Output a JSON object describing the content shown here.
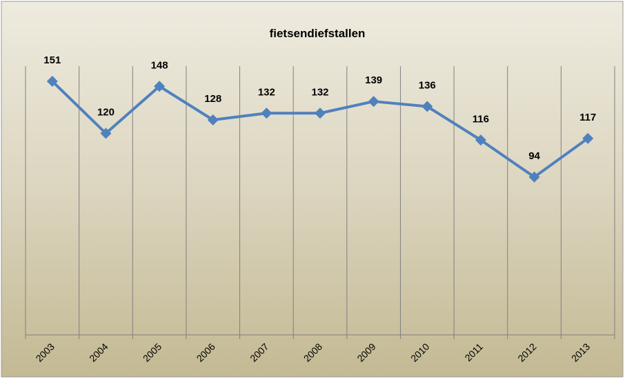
{
  "chart_data": {
    "type": "line",
    "title": "fietsendiefstallen",
    "categories": [
      "2003",
      "2004",
      "2005",
      "2006",
      "2007",
      "2008",
      "2009",
      "2010",
      "2011",
      "2012",
      "2013"
    ],
    "series": [
      {
        "name": "fietsendiefstallen",
        "color": "#4f81bd",
        "values": [
          151,
          120,
          148,
          128,
          132,
          132,
          139,
          136,
          116,
          94,
          117
        ]
      }
    ],
    "ylim": [
      0,
      160
    ]
  }
}
